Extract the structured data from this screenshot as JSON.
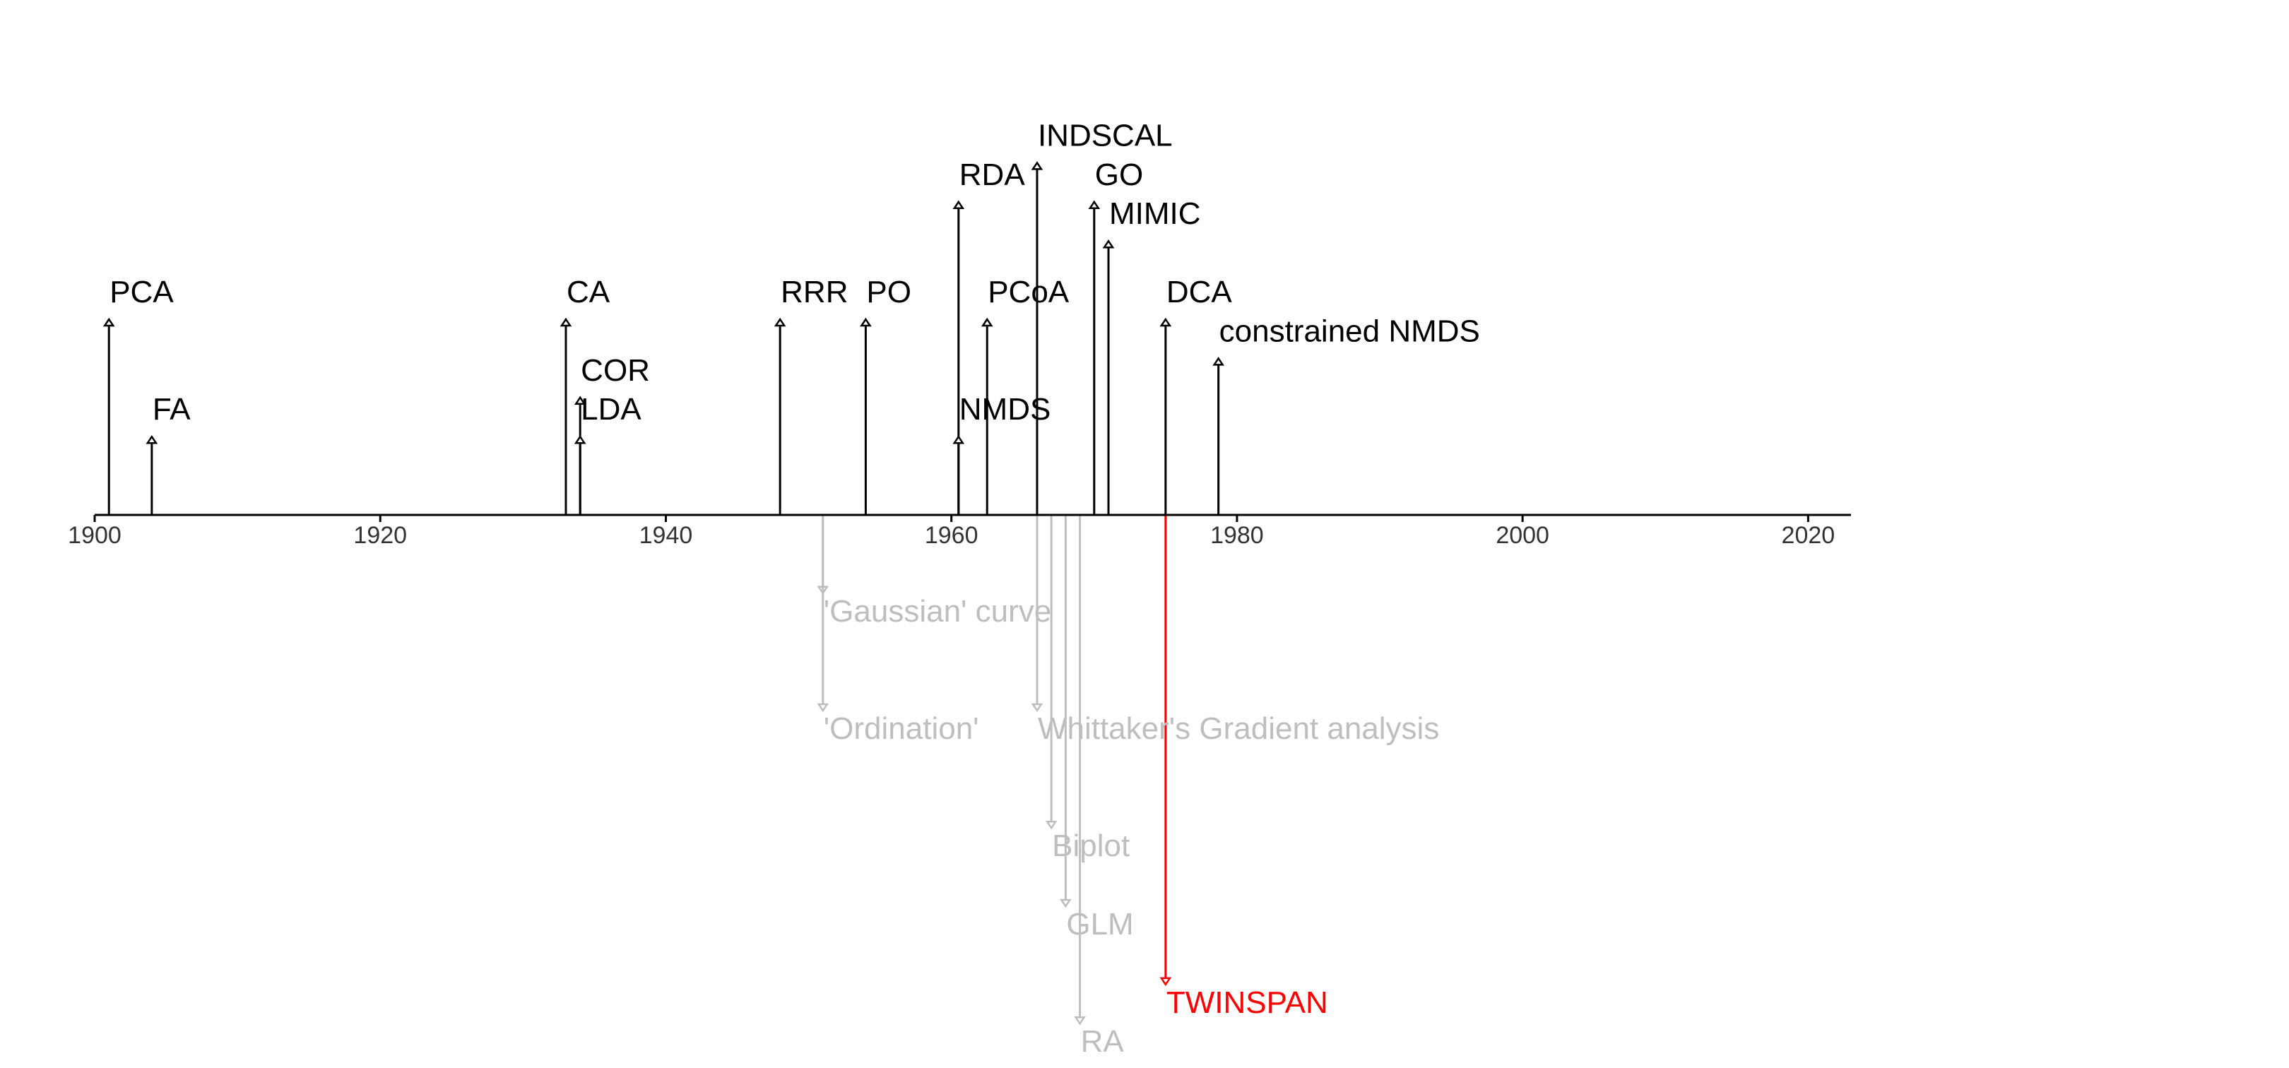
{
  "chart_data": {
    "type": "timeline",
    "title": "",
    "xlabel": "",
    "ylabel": "",
    "xlim": [
      1900,
      2023
    ],
    "grid": false,
    "x_ticks": [
      1900,
      1920,
      1940,
      1960,
      1980,
      2000,
      2020
    ],
    "events": [
      {
        "label": "PCA",
        "year": 1901,
        "level": 5,
        "group": "method"
      },
      {
        "label": "FA",
        "year": 1904,
        "level": 2,
        "group": "method"
      },
      {
        "label": "CA",
        "year": 1933,
        "level": 5,
        "group": "method"
      },
      {
        "label": "COR",
        "year": 1934,
        "level": 3,
        "group": "method"
      },
      {
        "label": "LDA",
        "year": 1934,
        "level": 2,
        "group": "method"
      },
      {
        "label": "RRR",
        "year": 1948,
        "level": 5,
        "group": "method"
      },
      {
        "label": "PO",
        "year": 1954,
        "level": 5,
        "group": "method"
      },
      {
        "label": "RDA",
        "year": 1960.5,
        "level": 8,
        "group": "method"
      },
      {
        "label": "NMDS",
        "year": 1960.5,
        "level": 2,
        "group": "method"
      },
      {
        "label": "PCoA",
        "year": 1962.5,
        "level": 5,
        "group": "method"
      },
      {
        "label": "INDSCAL",
        "year": 1966,
        "level": 9,
        "group": "method"
      },
      {
        "label": "GO",
        "year": 1970,
        "level": 8,
        "group": "method"
      },
      {
        "label": "MIMIC",
        "year": 1971,
        "level": 7,
        "group": "method"
      },
      {
        "label": "DCA",
        "year": 1975,
        "level": 5,
        "group": "method"
      },
      {
        "label": "constrained NMDS",
        "year": 1978.7,
        "level": 4,
        "group": "method"
      },
      {
        "label": "'Gaussian' curve",
        "year": 1951,
        "level": -2,
        "group": "concept"
      },
      {
        "label": "'Ordination'",
        "year": 1951,
        "level": -5,
        "group": "concept"
      },
      {
        "label": "Whittaker's Gradient analysis",
        "year": 1966,
        "level": -5,
        "group": "concept"
      },
      {
        "label": "Biplot",
        "year": 1967,
        "level": -8,
        "group": "concept"
      },
      {
        "label": "GLM",
        "year": 1968,
        "level": -10,
        "group": "concept"
      },
      {
        "label": "RA",
        "year": 1969,
        "level": -13,
        "group": "concept"
      },
      {
        "label": "TWINSPAN",
        "year": 1975,
        "level": -12,
        "group": "highlight"
      }
    ],
    "colors": {
      "method": "#000000",
      "concept": "#bebebe",
      "highlight": "#ff0000",
      "axis": "#000000"
    }
  }
}
